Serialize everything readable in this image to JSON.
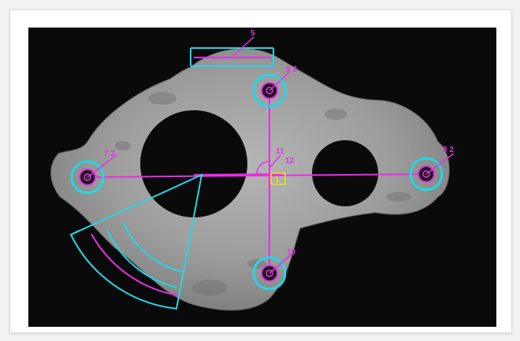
{
  "colors": {
    "background": "#f2f2f2",
    "card": "#ffffff",
    "viewport": "#0a0a0a",
    "measure_magenta": "#e62ee6",
    "feature_cyan": "#22d8e6",
    "origin_yellow": "#f2e21a"
  },
  "annotations": {
    "slot_width": "5",
    "hole_top": "9 3",
    "hole_left": "7 2",
    "hole_right": "8 2",
    "hole_bottom": "10",
    "center_angle": "11",
    "center_angle_sub": "12",
    "origin": "1"
  }
}
